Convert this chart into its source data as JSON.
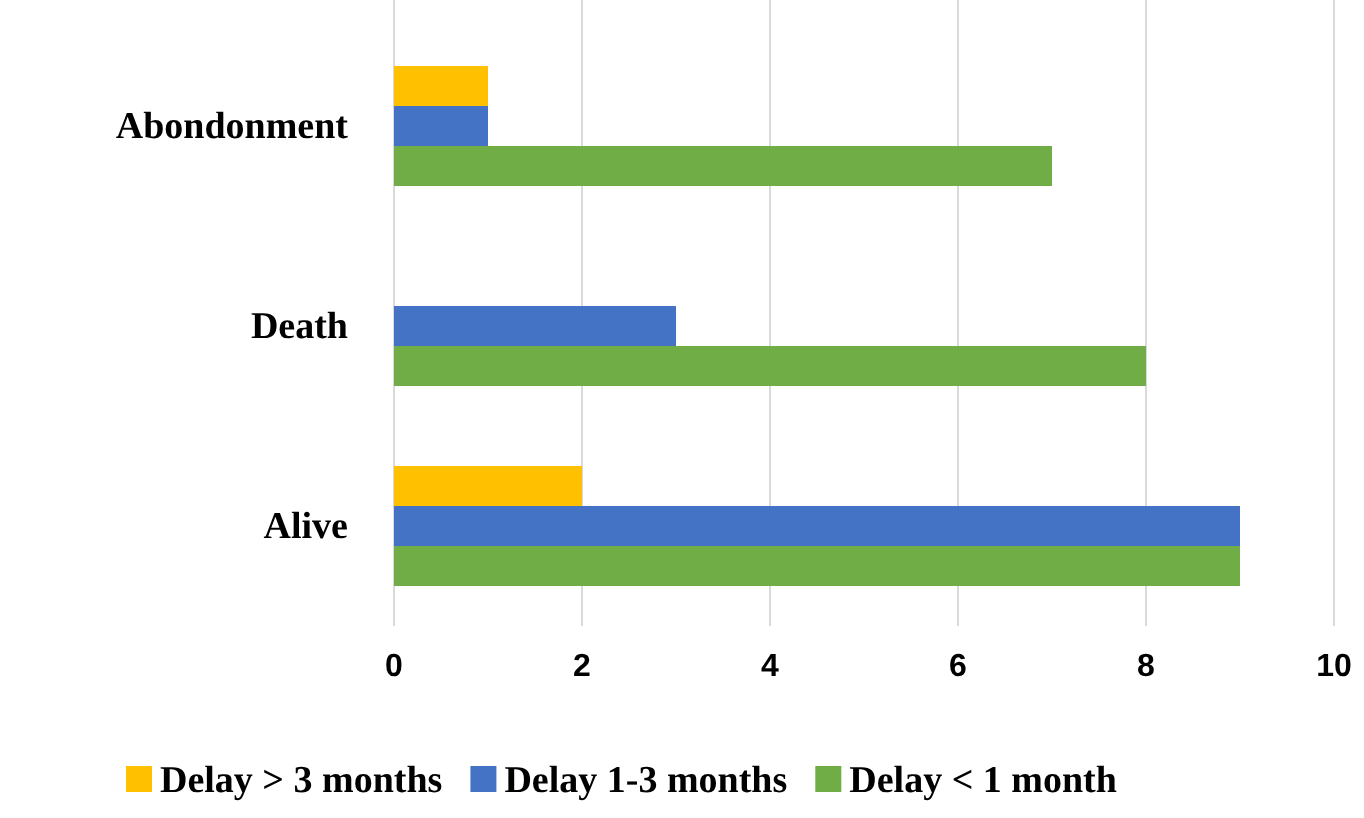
{
  "chart_data": {
    "type": "bar",
    "orientation": "horizontal",
    "categories": [
      "Abondonment",
      "Death",
      "Alive"
    ],
    "series": [
      {
        "name": "Delay > 3 months",
        "color": "#ffc000",
        "values": [
          1,
          0,
          2
        ]
      },
      {
        "name": "Delay 1-3 months",
        "color": "#4472c4",
        "values": [
          1,
          3,
          9
        ]
      },
      {
        "name": "Delay < 1 month",
        "color": "#70ad47",
        "values": [
          7,
          8,
          9
        ]
      }
    ],
    "xlim": [
      0,
      10
    ],
    "xticks": [
      0,
      2,
      4,
      6,
      8,
      10
    ],
    "grid": "x",
    "legend": "bottom"
  }
}
